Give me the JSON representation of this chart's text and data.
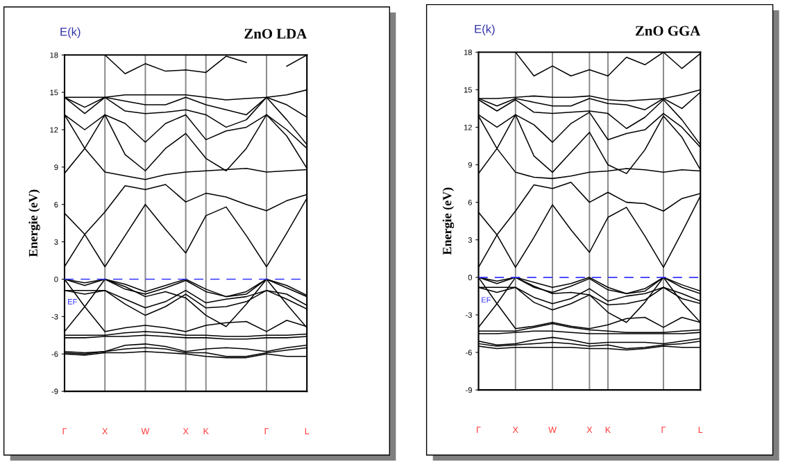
{
  "chart_data": [
    {
      "type": "line",
      "title": "ZnO LDA",
      "ylabel": "Energie (eV)",
      "annotations": [
        "E(k)"
      ],
      "categories": [
        "Γ",
        null,
        "X",
        null,
        "W",
        null,
        "X",
        "K",
        null,
        null,
        "Γ",
        null,
        "L"
      ],
      "ylim": [
        -9,
        18
      ],
      "yticks": [
        -9,
        -6,
        -3,
        0,
        3,
        6,
        9,
        12,
        15,
        18
      ],
      "grid": "x",
      "ref_lines": [
        {
          "axis": "y",
          "value": 0,
          "label": "EF",
          "color": "#3333ff",
          "line_style": "dashed"
        }
      ],
      "series": [
        {
          "color": "#000000",
          "values": [
            -4.5,
            -4.5,
            -4.5,
            -4.3,
            -4.2,
            -4.3,
            -4.5,
            -4.5,
            -4.6,
            -4.6,
            -4.5,
            -4.5,
            -4.4
          ]
        },
        {
          "color": "#000000",
          "values": [
            -4.7,
            -4.7,
            -4.6,
            -4.6,
            -4.5,
            -4.6,
            -4.7,
            -4.7,
            -4.8,
            -4.8,
            -4.7,
            -4.7,
            -4.6
          ]
        },
        {
          "color": "#000000",
          "values": [
            -5.8,
            -5.9,
            -5.8,
            -5.3,
            -5.2,
            -5.4,
            -5.8,
            -5.6,
            -5.5,
            -5.6,
            -5.8,
            -5.5,
            -5.3
          ]
        },
        {
          "color": "#000000",
          "values": [
            -5.9,
            -6.0,
            -5.8,
            -5.6,
            -5.5,
            -5.6,
            -5.9,
            -5.9,
            -6.2,
            -6.2,
            -5.9,
            -5.7,
            -5.5
          ]
        },
        {
          "color": "#000000",
          "values": [
            -6.0,
            -6.1,
            -5.9,
            -5.9,
            -5.8,
            -5.9,
            -6.0,
            -6.2,
            -6.3,
            -6.3,
            -6.0,
            -6.2,
            -6.2
          ]
        },
        {
          "color": "#000000",
          "values": [
            0,
            -0.3,
            0,
            -0.4,
            -1.0,
            -0.5,
            0,
            -0.8,
            -1.4,
            -1.0,
            0,
            -0.5,
            -1.3
          ]
        },
        {
          "color": "#000000",
          "values": [
            0,
            -0.5,
            0,
            -0.8,
            -1.2,
            -0.7,
            -0.1,
            -1.0,
            -1.4,
            -1.2,
            0,
            -0.7,
            -1.4
          ]
        },
        {
          "color": "#000000",
          "values": [
            -0.9,
            -0.9,
            -0.9,
            -1.6,
            -2.3,
            -1.8,
            -0.9,
            -1.9,
            -1.6,
            -1.4,
            -0.9,
            -1.2,
            -2.1
          ]
        },
        {
          "color": "#000000",
          "values": [
            -0.9,
            -1.2,
            -0.9,
            -2.0,
            -2.9,
            -2.2,
            -1.2,
            -2.3,
            -2.2,
            -1.8,
            -0.9,
            -1.6,
            -2.4
          ]
        },
        {
          "color": "#000000",
          "values": [
            0,
            -2.2,
            -4.2,
            -3.9,
            -3.7,
            -3.9,
            -4.2,
            -3.7,
            -3.5,
            -3.4,
            -4.2,
            -3.3,
            -3.8
          ]
        },
        {
          "color": "#000000",
          "values": [
            -4.2,
            -2.2,
            0,
            -0.6,
            -1.4,
            -1.0,
            -1.5,
            -2.9,
            -3.8,
            -2.0,
            0,
            -2.0,
            -3.9
          ]
        },
        {
          "color": "#000000",
          "values": [
            1.0,
            3.6,
            1.0,
            3.5,
            6.0,
            4.0,
            2.1,
            5.1,
            5.8,
            3.5,
            1.0,
            3.7,
            6.5
          ]
        },
        {
          "color": "#000000",
          "values": [
            5.3,
            3.6,
            5.4,
            7.5,
            7.2,
            7.6,
            6.2,
            6.9,
            6.6,
            6.0,
            5.5,
            6.3,
            6.8
          ]
        },
        {
          "color": "#000000",
          "values": [
            8.5,
            10.5,
            8.6,
            8.3,
            8.0,
            8.4,
            8.6,
            8.7,
            8.8,
            8.9,
            8.6,
            8.7,
            8.8
          ]
        },
        {
          "color": "#000000",
          "values": [
            13.2,
            10.5,
            13.2,
            10.0,
            8.7,
            10.5,
            11.7,
            9.7,
            8.7,
            10.5,
            13.2,
            11.5,
            8.9
          ]
        },
        {
          "color": "#000000",
          "values": [
            13.2,
            12.0,
            13.2,
            12.5,
            11.0,
            12.5,
            13.2,
            11.2,
            11.9,
            12.2,
            13.2,
            12.0,
            10.5
          ]
        },
        {
          "color": "#000000",
          "values": [
            14.6,
            13.3,
            14.6,
            13.5,
            13.3,
            13.4,
            13.6,
            13.2,
            12.2,
            12.8,
            14.6,
            12.8,
            10.8
          ]
        },
        {
          "color": "#000000",
          "values": [
            14.6,
            13.8,
            14.6,
            14.3,
            14.0,
            14.0,
            14.6,
            14.0,
            13.6,
            13.2,
            14.6,
            14.0,
            13.0
          ]
        },
        {
          "color": "#000000",
          "values": [
            14.6,
            14.6,
            14.6,
            14.8,
            14.8,
            14.8,
            14.8,
            14.6,
            14.4,
            14.5,
            14.6,
            14.8,
            15.2
          ]
        },
        {
          "color": "#000000",
          "values": [
            null,
            null,
            18,
            16.5,
            17.3,
            16.7,
            16.8,
            16.6,
            17.9,
            17.4,
            null,
            17.1,
            18
          ]
        }
      ]
    },
    {
      "type": "line",
      "title": "ZnO GGA",
      "ylabel": "Energie (eV)",
      "annotations": [
        "E(k)"
      ],
      "categories": [
        "Γ",
        null,
        "X",
        null,
        "W",
        null,
        "X",
        "K",
        null,
        null,
        "Γ",
        null,
        "L"
      ],
      "ylim": [
        -9,
        18
      ],
      "yticks": [
        -9,
        -6,
        -3,
        0,
        3,
        6,
        9,
        12,
        15,
        18
      ],
      "grid": "x",
      "ref_lines": [
        {
          "axis": "y",
          "value": 0,
          "label": "EF",
          "color": "#3333ff",
          "line_style": "dashed"
        }
      ],
      "series": [
        {
          "color": "#000000",
          "values": [
            -4.3,
            -4.3,
            -4.3,
            -4.0,
            -3.7,
            -4.0,
            -4.2,
            -4.3,
            -4.4,
            -4.4,
            -4.4,
            -4.3,
            -4.2
          ]
        },
        {
          "color": "#000000",
          "values": [
            -4.5,
            -4.5,
            -4.4,
            -4.3,
            -4.3,
            -4.4,
            -4.5,
            -4.5,
            -4.5,
            -4.5,
            -4.5,
            -4.5,
            -4.4
          ]
        },
        {
          "color": "#000000",
          "values": [
            -5.1,
            -5.4,
            -5.3,
            -5.0,
            -4.8,
            -5.0,
            -5.3,
            -5.2,
            -5.2,
            -5.2,
            -5.3,
            -5.1,
            -4.9
          ]
        },
        {
          "color": "#000000",
          "values": [
            -5.3,
            -5.5,
            -5.4,
            -5.3,
            -5.2,
            -5.3,
            -5.5,
            -5.4,
            -5.7,
            -5.6,
            -5.4,
            -5.3,
            -5.1
          ]
        },
        {
          "color": "#000000",
          "values": [
            -5.5,
            -5.7,
            -5.6,
            -5.6,
            -5.6,
            -5.6,
            -5.7,
            -5.7,
            -5.8,
            -5.7,
            -5.5,
            -5.6,
            -5.6
          ]
        },
        {
          "color": "#000000",
          "values": [
            0,
            -0.3,
            0,
            -0.4,
            -0.8,
            -0.5,
            0,
            -0.8,
            -1.3,
            -0.9,
            0,
            -0.6,
            -1.1
          ]
        },
        {
          "color": "#000000",
          "values": [
            0,
            -0.5,
            0,
            -0.8,
            -1.2,
            -0.7,
            -0.1,
            -1.0,
            -1.3,
            -1.1,
            0,
            -0.8,
            -1.3
          ]
        },
        {
          "color": "#000000",
          "values": [
            -0.8,
            -0.8,
            -0.8,
            -1.6,
            -2.1,
            -1.7,
            -0.9,
            -1.9,
            -1.5,
            -1.3,
            -0.8,
            -1.3,
            -1.9
          ]
        },
        {
          "color": "#000000",
          "values": [
            -0.8,
            -1.2,
            -0.8,
            -2.0,
            -2.6,
            -2.1,
            -1.4,
            -2.2,
            -2.1,
            -1.8,
            -0.8,
            -1.7,
            -2.1
          ]
        },
        {
          "color": "#000000",
          "values": [
            0,
            -2.1,
            -4.1,
            -3.9,
            -3.6,
            -3.9,
            -4.1,
            -3.8,
            -3.3,
            -3.2,
            -4.0,
            -3.2,
            -3.6
          ]
        },
        {
          "color": "#000000",
          "values": [
            -4.0,
            -2.1,
            0,
            -0.7,
            -1.3,
            -1.2,
            -1.4,
            -2.8,
            -3.6,
            -2.0,
            0,
            -2.0,
            -3.6
          ]
        },
        {
          "color": "#000000",
          "values": [
            0.8,
            3.4,
            0.8,
            3.2,
            5.8,
            3.8,
            2.0,
            4.8,
            5.6,
            3.3,
            0.8,
            3.6,
            6.5
          ]
        },
        {
          "color": "#000000",
          "values": [
            5.2,
            3.4,
            5.3,
            7.4,
            7.1,
            7.6,
            6.0,
            6.8,
            6.0,
            5.9,
            5.3,
            6.3,
            6.7
          ]
        },
        {
          "color": "#000000",
          "values": [
            8.3,
            10.3,
            8.4,
            8.0,
            7.9,
            8.1,
            8.4,
            8.5,
            8.7,
            8.6,
            8.4,
            8.6,
            8.5
          ]
        },
        {
          "color": "#000000",
          "values": [
            12.9,
            10.3,
            13.0,
            9.7,
            8.4,
            10.0,
            11.6,
            9.0,
            8.3,
            10.2,
            12.9,
            11.2,
            8.6
          ]
        },
        {
          "color": "#000000",
          "values": [
            13.0,
            12.0,
            13.0,
            12.2,
            10.8,
            12.3,
            13.2,
            11.0,
            11.5,
            11.8,
            13.1,
            12.0,
            10.4
          ]
        },
        {
          "color": "#000000",
          "values": [
            14.2,
            13.3,
            14.2,
            13.2,
            13.1,
            13.2,
            13.3,
            13.1,
            11.9,
            12.8,
            14.2,
            12.6,
            10.6
          ]
        },
        {
          "color": "#000000",
          "values": [
            14.3,
            13.7,
            14.3,
            14.0,
            13.7,
            13.7,
            14.3,
            13.9,
            13.8,
            13.4,
            14.3,
            13.5,
            14.8
          ]
        },
        {
          "color": "#000000",
          "values": [
            14.3,
            14.3,
            14.4,
            14.5,
            14.4,
            14.4,
            14.5,
            14.2,
            14.1,
            14.2,
            14.3,
            14.6,
            15.0
          ]
        },
        {
          "color": "#000000",
          "values": [
            null,
            null,
            18,
            16.1,
            16.9,
            16.1,
            16.6,
            16.1,
            17.6,
            17.0,
            18,
            16.7,
            17.9
          ]
        }
      ]
    }
  ]
}
